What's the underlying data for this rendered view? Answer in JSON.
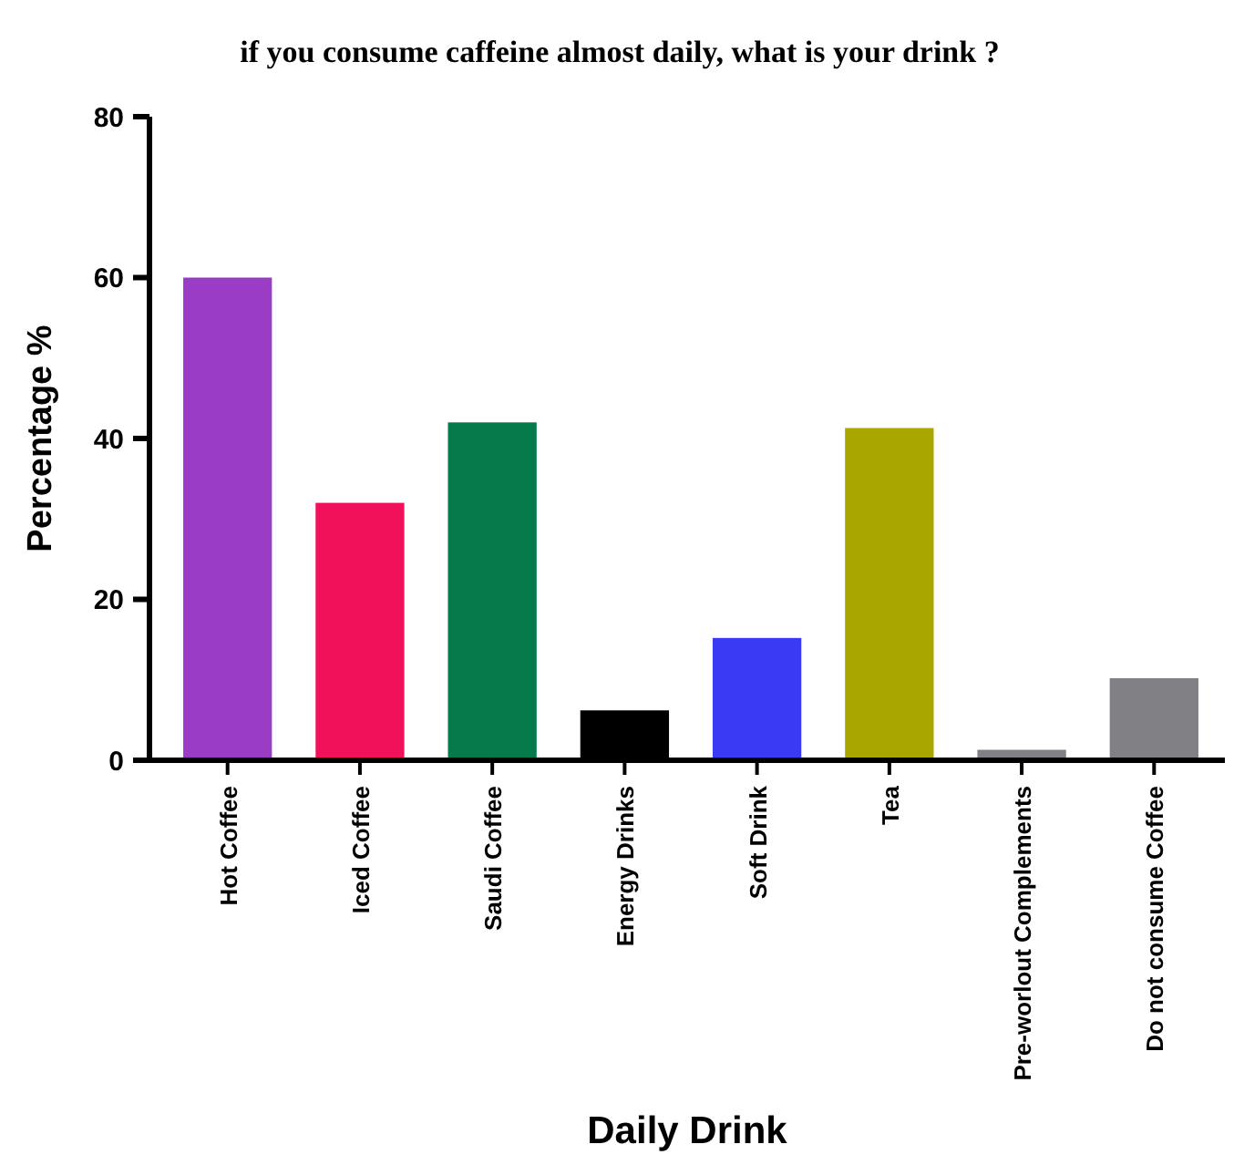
{
  "chart_data": {
    "type": "bar",
    "title": "if you consume caffeine almost daily, what is your drink ?",
    "xlabel": "Daily Drink",
    "ylabel": "Percentage %",
    "categories": [
      "Hot Coffee",
      "Iced Coffee",
      "Saudi Coffee",
      "Energy Drinks",
      "Soft Drink",
      "Tea",
      "Pre-worlout Complements",
      "Do not consume Coffee"
    ],
    "values": [
      60,
      32,
      42,
      6.2,
      15.2,
      41.3,
      1.3,
      10.2
    ],
    "colors": [
      "#9b3cc6",
      "#f0115a",
      "#067a4a",
      "#000000",
      "#3a3af5",
      "#aaa600",
      "#808085",
      "#808085"
    ],
    "ylim": [
      0,
      80
    ],
    "yticks": [
      0,
      20,
      40,
      60,
      80
    ],
    "grid": false
  }
}
